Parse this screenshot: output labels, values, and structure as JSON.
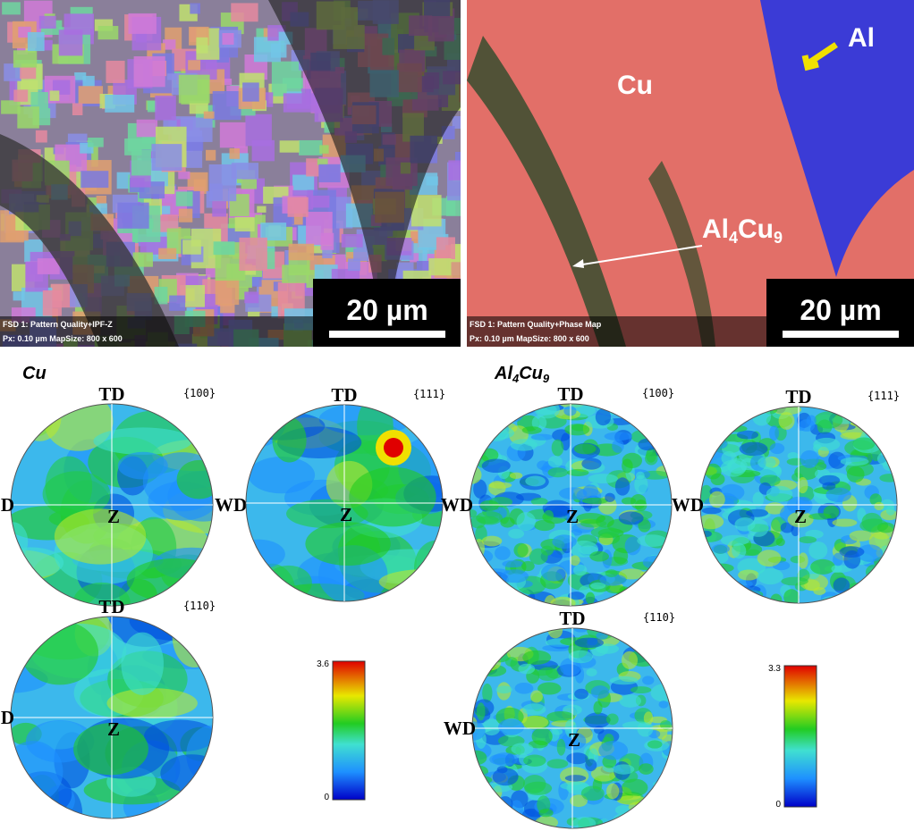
{
  "panels": [
    {
      "scale_bar": "20 µm",
      "caption_1": "FSD 1: Pattern Quality+IPF-Z",
      "caption_2": "Px: 0.10 µm  MapSize: 800 x 600"
    },
    {
      "scale_bar": "20 µm",
      "caption_1": "FSD 1: Pattern Quality+Phase Map",
      "caption_2": "Px: 0.10 µm  MapSize: 800 x 600",
      "labels": {
        "cu": "Cu",
        "al": "Al",
        "phase": [
          "Al",
          "4",
          "Cu",
          "9"
        ]
      }
    }
  ],
  "pole_figure_groups": [
    {
      "title": [
        "Cu"
      ],
      "figures": [
        {
          "plane": "{100}",
          "top": "TD",
          "left": "D",
          "right": "WD",
          "center": "Z"
        },
        {
          "plane": "{111}",
          "top": "TD",
          "center": "Z"
        },
        {
          "plane": "{110}",
          "top": "TD",
          "left": "D",
          "center": "Z"
        }
      ],
      "colorbar": {
        "max": 3.6,
        "min": 0
      }
    },
    {
      "title": [
        "Al",
        "4",
        "Cu",
        "9"
      ],
      "figures": [
        {
          "plane": "{100}",
          "top": "TD",
          "left": "WD",
          "center": "Z"
        },
        {
          "plane": "{111}",
          "top": "TD",
          "left": "WD",
          "center": "Z"
        },
        {
          "plane": "{110}",
          "top": "TD",
          "left": "WD",
          "center": "Z"
        }
      ],
      "colorbar": {
        "max": 3.3,
        "min": 0
      }
    }
  ]
}
